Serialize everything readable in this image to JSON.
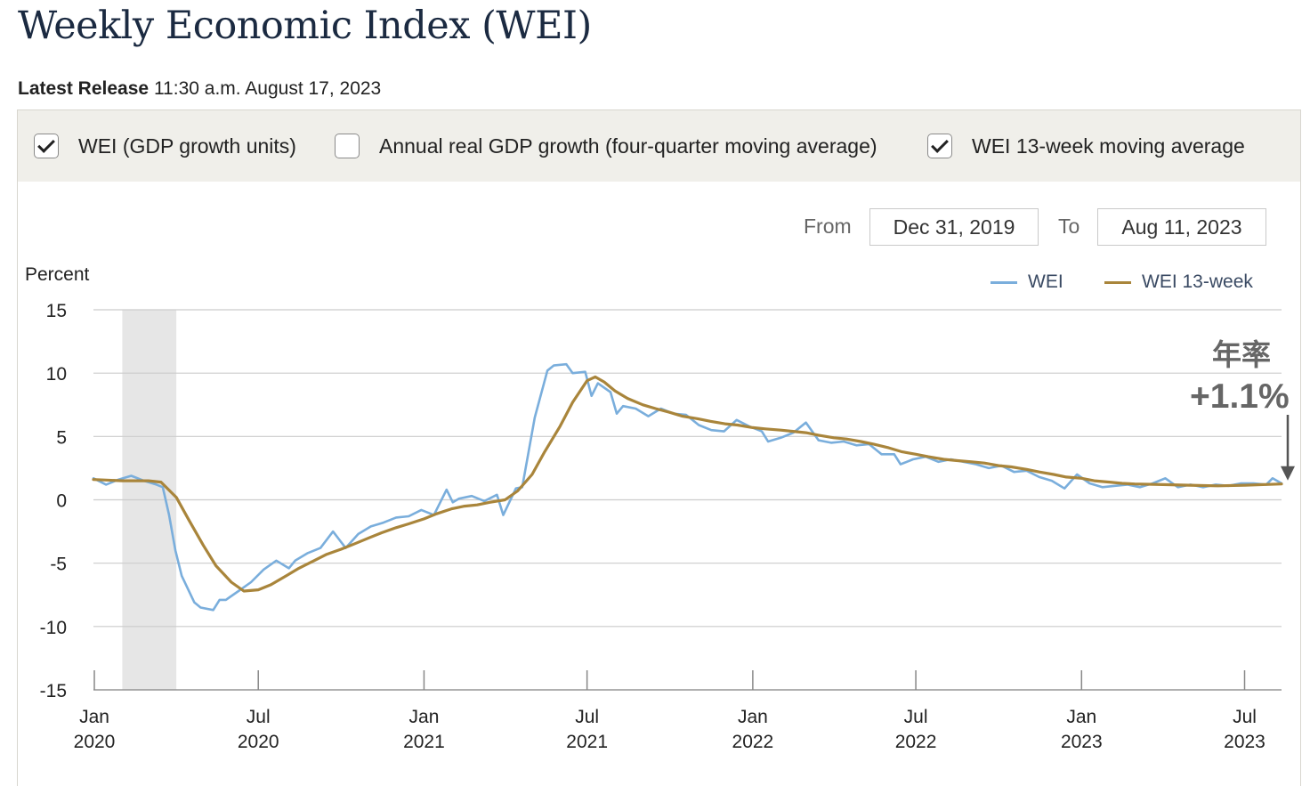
{
  "header": {
    "title": "Weekly Economic Index (WEI)",
    "release_label": "Latest Release",
    "release_time": "11:30 a.m. August 17, 2023"
  },
  "options": [
    {
      "label": "WEI (GDP growth units)",
      "checked": true
    },
    {
      "label": "Annual real GDP growth (four-quarter moving average)",
      "checked": false
    },
    {
      "label": "WEI 13-week moving average",
      "checked": true
    }
  ],
  "range": {
    "from_label": "From",
    "from_value": "Dec 31, 2019",
    "to_label": "To",
    "to_value": "Aug 11, 2023"
  },
  "annotation": {
    "line1": "年率",
    "line2": "+1.1%"
  },
  "colors": {
    "wei": "#7aaedc",
    "ma": "#a9853b",
    "recession": "#e6e6e6",
    "grid": "#cccccc"
  },
  "chart_data": {
    "type": "line",
    "ylabel": "Percent",
    "ylim": [
      -15,
      15
    ],
    "yticks": [
      15,
      10,
      5,
      0,
      -5,
      -10,
      -15
    ],
    "xlim": [
      "2019-12-31",
      "2023-08-11"
    ],
    "xticks": [
      {
        "date": "2020-01-01",
        "label": [
          "Jan",
          "2020"
        ]
      },
      {
        "date": "2020-07-01",
        "label": [
          "Jul",
          "2020"
        ]
      },
      {
        "date": "2021-01-01",
        "label": [
          "Jan",
          "2021"
        ]
      },
      {
        "date": "2021-07-01",
        "label": [
          "Jul",
          "2021"
        ]
      },
      {
        "date": "2022-01-01",
        "label": [
          "Jan",
          "2022"
        ]
      },
      {
        "date": "2022-07-01",
        "label": [
          "Jul",
          "2022"
        ]
      },
      {
        "date": "2023-01-01",
        "label": [
          "Jan",
          "2023"
        ]
      },
      {
        "date": "2023-07-01",
        "label": [
          "Jul",
          "2023"
        ]
      }
    ],
    "recession": [
      "2020-02-01",
      "2020-04-01"
    ],
    "series": [
      {
        "name": "WEI",
        "key": "wei",
        "points": [
          [
            "2019-12-31",
            1.7
          ],
          [
            "2020-01-14",
            1.2
          ],
          [
            "2020-01-28",
            1.6
          ],
          [
            "2020-02-11",
            1.9
          ],
          [
            "2020-02-25",
            1.5
          ],
          [
            "2020-03-10",
            1.2
          ],
          [
            "2020-03-17",
            1.0
          ],
          [
            "2020-03-24",
            -1.2
          ],
          [
            "2020-03-31",
            -4.0
          ],
          [
            "2020-04-07",
            -6.0
          ],
          [
            "2020-04-21",
            -8.1
          ],
          [
            "2020-04-28",
            -8.5
          ],
          [
            "2020-05-12",
            -8.7
          ],
          [
            "2020-05-19",
            -7.9
          ],
          [
            "2020-05-26",
            -7.9
          ],
          [
            "2020-06-09",
            -7.2
          ],
          [
            "2020-06-23",
            -6.5
          ],
          [
            "2020-07-07",
            -5.5
          ],
          [
            "2020-07-21",
            -4.8
          ],
          [
            "2020-08-04",
            -5.4
          ],
          [
            "2020-08-11",
            -4.8
          ],
          [
            "2020-08-25",
            -4.2
          ],
          [
            "2020-09-08",
            -3.8
          ],
          [
            "2020-09-22",
            -2.5
          ],
          [
            "2020-10-06",
            -3.8
          ],
          [
            "2020-10-20",
            -2.7
          ],
          [
            "2020-11-03",
            -2.1
          ],
          [
            "2020-11-17",
            -1.8
          ],
          [
            "2020-12-01",
            -1.4
          ],
          [
            "2020-12-15",
            -1.3
          ],
          [
            "2020-12-29",
            -0.8
          ],
          [
            "2021-01-12",
            -1.2
          ],
          [
            "2021-01-26",
            0.8
          ],
          [
            "2021-02-02",
            -0.2
          ],
          [
            "2021-02-09",
            0.1
          ],
          [
            "2021-02-23",
            0.3
          ],
          [
            "2021-03-09",
            -0.1
          ],
          [
            "2021-03-23",
            0.4
          ],
          [
            "2021-03-30",
            -1.2
          ],
          [
            "2021-04-13",
            0.9
          ],
          [
            "2021-04-20",
            1.0
          ],
          [
            "2021-05-04",
            6.5
          ],
          [
            "2021-05-18",
            10.2
          ],
          [
            "2021-05-25",
            10.6
          ],
          [
            "2021-06-08",
            10.7
          ],
          [
            "2021-06-15",
            10.0
          ],
          [
            "2021-06-29",
            10.1
          ],
          [
            "2021-07-06",
            8.2
          ],
          [
            "2021-07-13",
            9.2
          ],
          [
            "2021-07-27",
            8.5
          ],
          [
            "2021-08-03",
            6.8
          ],
          [
            "2021-08-10",
            7.4
          ],
          [
            "2021-08-24",
            7.2
          ],
          [
            "2021-09-07",
            6.6
          ],
          [
            "2021-09-21",
            7.2
          ],
          [
            "2021-10-05",
            6.8
          ],
          [
            "2021-10-19",
            6.7
          ],
          [
            "2021-11-02",
            5.9
          ],
          [
            "2021-11-16",
            5.5
          ],
          [
            "2021-11-30",
            5.4
          ],
          [
            "2021-12-14",
            6.3
          ],
          [
            "2021-12-28",
            5.8
          ],
          [
            "2022-01-11",
            5.4
          ],
          [
            "2022-01-18",
            4.6
          ],
          [
            "2022-02-01",
            4.9
          ],
          [
            "2022-02-15",
            5.3
          ],
          [
            "2022-03-01",
            6.1
          ],
          [
            "2022-03-15",
            4.7
          ],
          [
            "2022-03-29",
            4.5
          ],
          [
            "2022-04-12",
            4.6
          ],
          [
            "2022-04-26",
            4.3
          ],
          [
            "2022-05-10",
            4.4
          ],
          [
            "2022-05-24",
            3.6
          ],
          [
            "2022-06-07",
            3.6
          ],
          [
            "2022-06-14",
            2.8
          ],
          [
            "2022-06-28",
            3.2
          ],
          [
            "2022-07-12",
            3.4
          ],
          [
            "2022-07-26",
            3.0
          ],
          [
            "2022-08-09",
            3.2
          ],
          [
            "2022-08-23",
            3.0
          ],
          [
            "2022-09-06",
            2.8
          ],
          [
            "2022-09-20",
            2.5
          ],
          [
            "2022-10-04",
            2.7
          ],
          [
            "2022-10-18",
            2.2
          ],
          [
            "2022-11-01",
            2.3
          ],
          [
            "2022-11-15",
            1.8
          ],
          [
            "2022-11-29",
            1.5
          ],
          [
            "2022-12-13",
            0.9
          ],
          [
            "2022-12-27",
            2.0
          ],
          [
            "2023-01-10",
            1.3
          ],
          [
            "2023-01-24",
            1.0
          ],
          [
            "2023-02-07",
            1.1
          ],
          [
            "2023-02-21",
            1.2
          ],
          [
            "2023-03-07",
            1.0
          ],
          [
            "2023-03-21",
            1.3
          ],
          [
            "2023-04-04",
            1.7
          ],
          [
            "2023-04-18",
            1.0
          ],
          [
            "2023-05-02",
            1.2
          ],
          [
            "2023-05-16",
            1.0
          ],
          [
            "2023-05-30",
            1.2
          ],
          [
            "2023-06-13",
            1.1
          ],
          [
            "2023-06-27",
            1.3
          ],
          [
            "2023-07-11",
            1.3
          ],
          [
            "2023-07-25",
            1.2
          ],
          [
            "2023-08-01",
            1.7
          ],
          [
            "2023-08-11",
            1.3
          ]
        ]
      },
      {
        "name": "WEI 13-week",
        "key": "ma",
        "points": [
          [
            "2019-12-31",
            1.6
          ],
          [
            "2020-02-01",
            1.5
          ],
          [
            "2020-03-01",
            1.5
          ],
          [
            "2020-03-15",
            1.4
          ],
          [
            "2020-04-01",
            0.2
          ],
          [
            "2020-04-15",
            -1.6
          ],
          [
            "2020-05-01",
            -3.6
          ],
          [
            "2020-05-15",
            -5.2
          ],
          [
            "2020-06-01",
            -6.5
          ],
          [
            "2020-06-15",
            -7.2
          ],
          [
            "2020-07-01",
            -7.1
          ],
          [
            "2020-07-15",
            -6.7
          ],
          [
            "2020-08-01",
            -6.0
          ],
          [
            "2020-08-15",
            -5.4
          ],
          [
            "2020-09-01",
            -4.8
          ],
          [
            "2020-09-15",
            -4.3
          ],
          [
            "2020-10-01",
            -3.9
          ],
          [
            "2020-10-15",
            -3.5
          ],
          [
            "2020-11-01",
            -3.0
          ],
          [
            "2020-11-15",
            -2.6
          ],
          [
            "2020-12-01",
            -2.2
          ],
          [
            "2020-12-15",
            -1.9
          ],
          [
            "2021-01-01",
            -1.5
          ],
          [
            "2021-01-15",
            -1.1
          ],
          [
            "2021-02-01",
            -0.7
          ],
          [
            "2021-02-15",
            -0.5
          ],
          [
            "2021-03-01",
            -0.4
          ],
          [
            "2021-03-15",
            -0.2
          ],
          [
            "2021-04-01",
            0.0
          ],
          [
            "2021-04-15",
            0.7
          ],
          [
            "2021-05-01",
            2.0
          ],
          [
            "2021-05-15",
            3.8
          ],
          [
            "2021-06-01",
            5.8
          ],
          [
            "2021-06-15",
            7.7
          ],
          [
            "2021-07-01",
            9.4
          ],
          [
            "2021-07-10",
            9.7
          ],
          [
            "2021-07-20",
            9.3
          ],
          [
            "2021-08-01",
            8.6
          ],
          [
            "2021-08-15",
            8.0
          ],
          [
            "2021-09-01",
            7.5
          ],
          [
            "2021-09-15",
            7.2
          ],
          [
            "2021-10-01",
            6.9
          ],
          [
            "2021-10-15",
            6.6
          ],
          [
            "2021-11-01",
            6.4
          ],
          [
            "2021-11-15",
            6.2
          ],
          [
            "2021-12-01",
            6.0
          ],
          [
            "2021-12-15",
            5.9
          ],
          [
            "2022-01-01",
            5.7
          ],
          [
            "2022-01-15",
            5.6
          ],
          [
            "2022-02-01",
            5.5
          ],
          [
            "2022-02-15",
            5.4
          ],
          [
            "2022-03-01",
            5.3
          ],
          [
            "2022-03-15",
            5.1
          ],
          [
            "2022-04-01",
            4.9
          ],
          [
            "2022-04-15",
            4.8
          ],
          [
            "2022-05-01",
            4.6
          ],
          [
            "2022-05-15",
            4.4
          ],
          [
            "2022-06-01",
            4.1
          ],
          [
            "2022-06-15",
            3.8
          ],
          [
            "2022-07-01",
            3.6
          ],
          [
            "2022-07-15",
            3.4
          ],
          [
            "2022-08-01",
            3.2
          ],
          [
            "2022-08-15",
            3.1
          ],
          [
            "2022-09-01",
            3.0
          ],
          [
            "2022-09-15",
            2.9
          ],
          [
            "2022-10-01",
            2.7
          ],
          [
            "2022-10-15",
            2.6
          ],
          [
            "2022-11-01",
            2.4
          ],
          [
            "2022-11-15",
            2.2
          ],
          [
            "2022-12-01",
            2.0
          ],
          [
            "2022-12-15",
            1.8
          ],
          [
            "2023-01-01",
            1.7
          ],
          [
            "2023-01-15",
            1.5
          ],
          [
            "2023-02-01",
            1.4
          ],
          [
            "2023-02-15",
            1.3
          ],
          [
            "2023-03-01",
            1.25
          ],
          [
            "2023-04-01",
            1.2
          ],
          [
            "2023-05-01",
            1.15
          ],
          [
            "2023-06-01",
            1.1
          ],
          [
            "2023-07-01",
            1.15
          ],
          [
            "2023-08-11",
            1.25
          ]
        ]
      }
    ]
  }
}
